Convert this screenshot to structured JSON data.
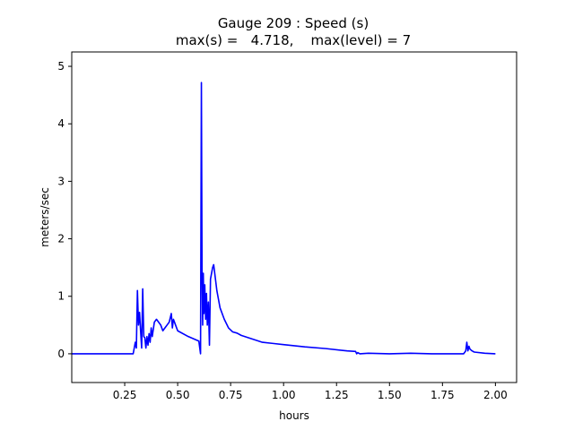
{
  "chart_data": {
    "type": "line",
    "title": "Gauge 209 : Speed (s)",
    "subtitle": "max(s) =   4.718,    max(level) = 7",
    "xlabel": "hours",
    "ylabel": "meters/sec",
    "xlim": [
      0.0,
      2.1
    ],
    "ylim": [
      -0.5,
      5.25
    ],
    "xticks": [
      {
        "value": 0.25,
        "label": "0.25"
      },
      {
        "value": 0.5,
        "label": "0.50"
      },
      {
        "value": 0.75,
        "label": "0.75"
      },
      {
        "value": 1.0,
        "label": "1.00"
      },
      {
        "value": 1.25,
        "label": "1.25"
      },
      {
        "value": 1.5,
        "label": "1.50"
      },
      {
        "value": 1.75,
        "label": "1.75"
      },
      {
        "value": 2.0,
        "label": "2.00"
      }
    ],
    "yticks": [
      {
        "value": 0,
        "label": "0"
      },
      {
        "value": 1,
        "label": "1"
      },
      {
        "value": 2,
        "label": "2"
      },
      {
        "value": 3,
        "label": "3"
      },
      {
        "value": 4,
        "label": "4"
      },
      {
        "value": 5,
        "label": "5"
      }
    ],
    "grid": false,
    "series": [
      {
        "color": "#0000ff",
        "x": [
          0.0,
          0.29,
          0.3,
          0.305,
          0.31,
          0.315,
          0.32,
          0.325,
          0.33,
          0.335,
          0.34,
          0.345,
          0.35,
          0.355,
          0.36,
          0.365,
          0.37,
          0.375,
          0.38,
          0.39,
          0.4,
          0.41,
          0.42,
          0.43,
          0.44,
          0.45,
          0.46,
          0.47,
          0.475,
          0.48,
          0.49,
          0.5,
          0.55,
          0.6,
          0.608,
          0.612,
          0.615,
          0.618,
          0.621,
          0.624,
          0.628,
          0.632,
          0.636,
          0.64,
          0.645,
          0.65,
          0.655,
          0.66,
          0.665,
          0.67,
          0.675,
          0.68,
          0.685,
          0.69,
          0.7,
          0.72,
          0.74,
          0.76,
          0.78,
          0.8,
          0.85,
          0.9,
          0.95,
          1.0,
          1.1,
          1.2,
          1.3,
          1.34,
          1.345,
          1.35,
          1.36,
          1.4,
          1.5,
          1.6,
          1.7,
          1.85,
          1.86,
          1.865,
          1.87,
          1.875,
          1.88,
          1.89,
          1.9,
          1.95,
          2.0
        ],
        "y": [
          0.0,
          0.0,
          0.2,
          0.1,
          1.1,
          0.5,
          0.72,
          0.4,
          0.1,
          1.13,
          0.3,
          0.28,
          0.1,
          0.3,
          0.15,
          0.35,
          0.2,
          0.45,
          0.3,
          0.55,
          0.6,
          0.55,
          0.5,
          0.4,
          0.45,
          0.5,
          0.55,
          0.7,
          0.45,
          0.6,
          0.5,
          0.4,
          0.3,
          0.22,
          0.0,
          4.718,
          1.5,
          0.5,
          1.4,
          0.7,
          1.2,
          0.6,
          1.05,
          0.5,
          0.9,
          0.15,
          1.3,
          1.4,
          1.5,
          1.55,
          1.4,
          1.25,
          1.1,
          1.0,
          0.8,
          0.6,
          0.45,
          0.38,
          0.36,
          0.32,
          0.26,
          0.2,
          0.18,
          0.16,
          0.12,
          0.09,
          0.05,
          0.04,
          0.0,
          0.02,
          0.0,
          0.01,
          0.0,
          0.01,
          0.0,
          0.0,
          0.05,
          0.2,
          0.05,
          0.13,
          0.08,
          0.05,
          0.03,
          0.01,
          0.0
        ]
      }
    ]
  }
}
